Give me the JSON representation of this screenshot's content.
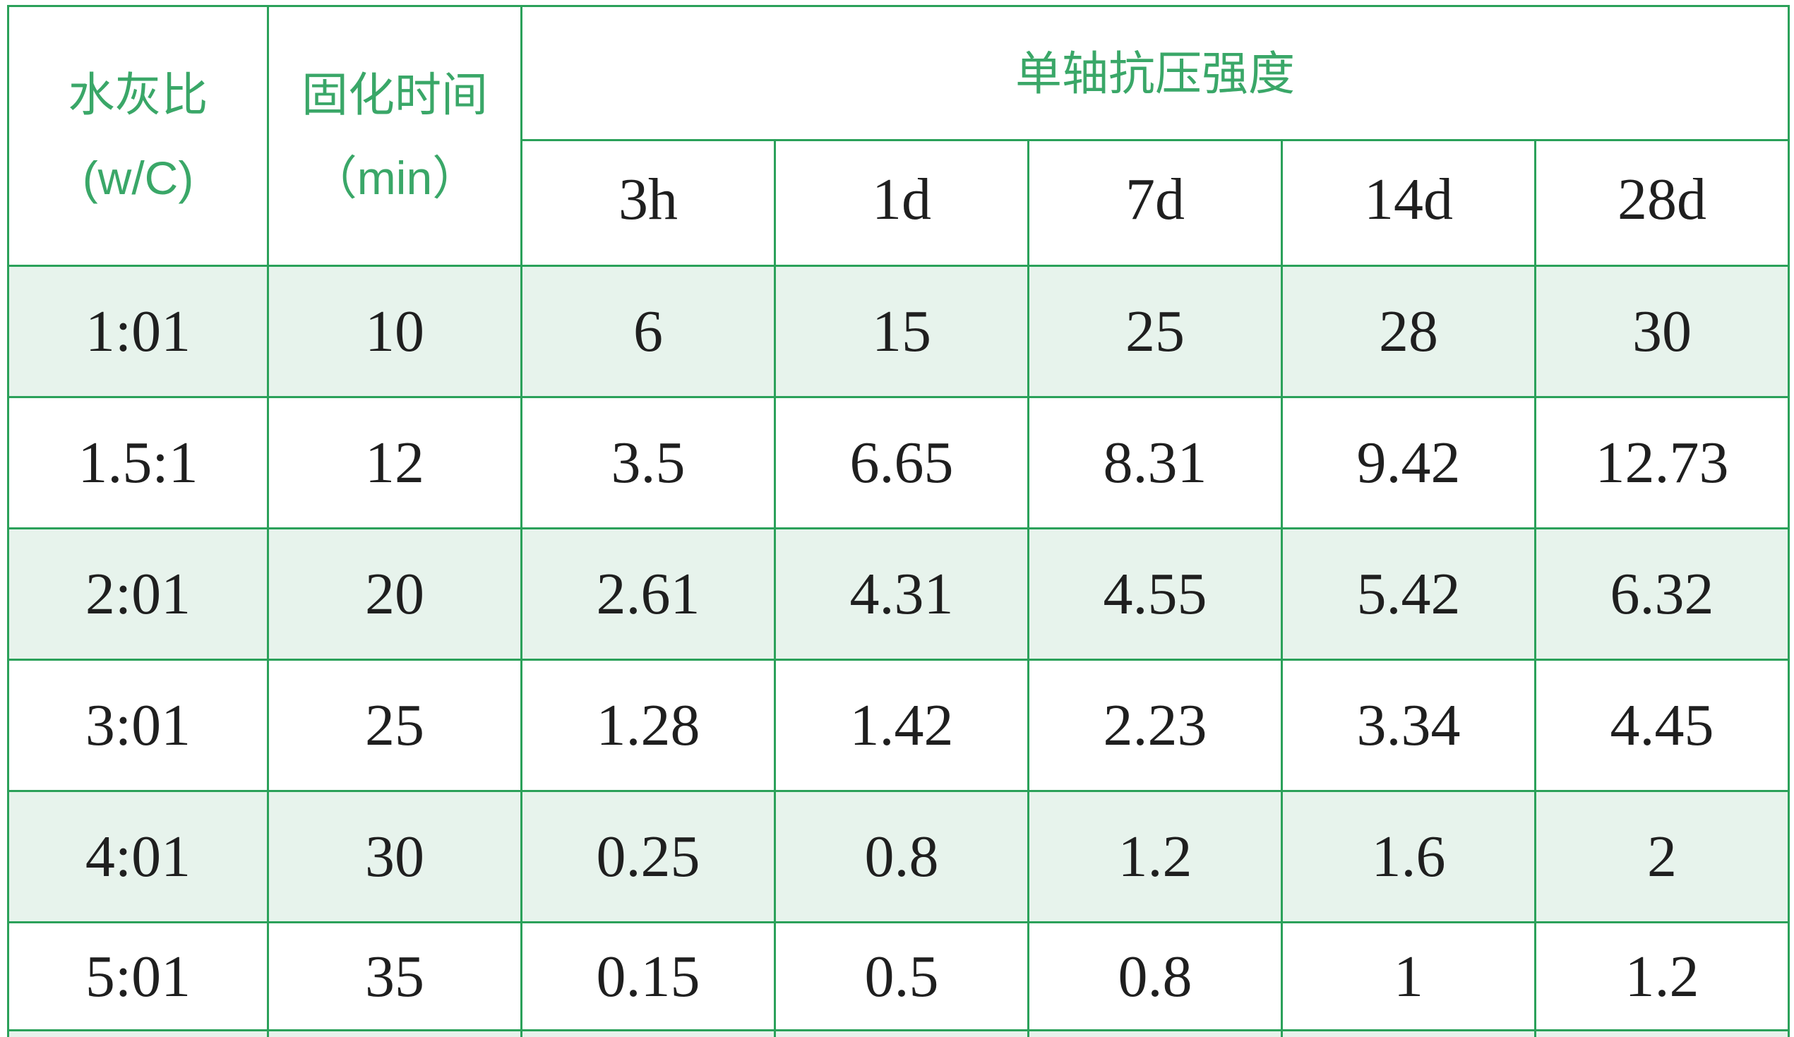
{
  "table": {
    "title_semantic": "cement-grout-strength-table",
    "headers": {
      "water_cement_ratio_line1": "水灰比",
      "water_cement_ratio_line2": "(w/C)",
      "curing_time_line1": "固化时间",
      "curing_time_line2": "（min）",
      "strength_span": "单轴抗压强度",
      "sub_headers": [
        "3h",
        "1d",
        "7d",
        "14d",
        "28d"
      ]
    },
    "rows": [
      [
        "1:01",
        "10",
        "6",
        "15",
        "25",
        "28",
        "30"
      ],
      [
        "1.5:1",
        "12",
        "3.5",
        "6.65",
        "8.31",
        "9.42",
        "12.73"
      ],
      [
        "2:01",
        "20",
        "2.61",
        "4.31",
        "4.55",
        "5.42",
        "6.32"
      ],
      [
        "3:01",
        "25",
        "1.28",
        "1.42",
        "2.23",
        "3.34",
        "4.45"
      ],
      [
        "4:01",
        "30",
        "0.25",
        "0.8",
        "1.2",
        "1.6",
        "2"
      ],
      [
        "5:01",
        "35",
        "0.15",
        "0.5",
        "0.8",
        "1",
        "1.2"
      ]
    ],
    "colors": {
      "border_green": "#2ba15a",
      "header_text_green": "#3aa768",
      "striped_row_mint": "#e7f3ec",
      "data_text": "#1f1f1f",
      "background": "#ffffff"
    }
  },
  "chart_data": {
    "type": "table",
    "title": "单轴抗压强度",
    "columns": [
      "水灰比 (w/C)",
      "固化时间（min）",
      "3h",
      "1d",
      "7d",
      "14d",
      "28d"
    ],
    "rows": [
      [
        "1:01",
        10,
        6,
        15,
        25,
        28,
        30
      ],
      [
        "1.5:1",
        12,
        3.5,
        6.65,
        8.31,
        9.42,
        12.73
      ],
      [
        "2:01",
        20,
        2.61,
        4.31,
        4.55,
        5.42,
        6.32
      ],
      [
        "3:01",
        25,
        1.28,
        1.42,
        2.23,
        3.34,
        4.45
      ],
      [
        "4:01",
        30,
        0.25,
        0.8,
        1.2,
        1.6,
        2
      ],
      [
        "5:01",
        35,
        0.15,
        0.5,
        0.8,
        1,
        1.2
      ]
    ]
  }
}
